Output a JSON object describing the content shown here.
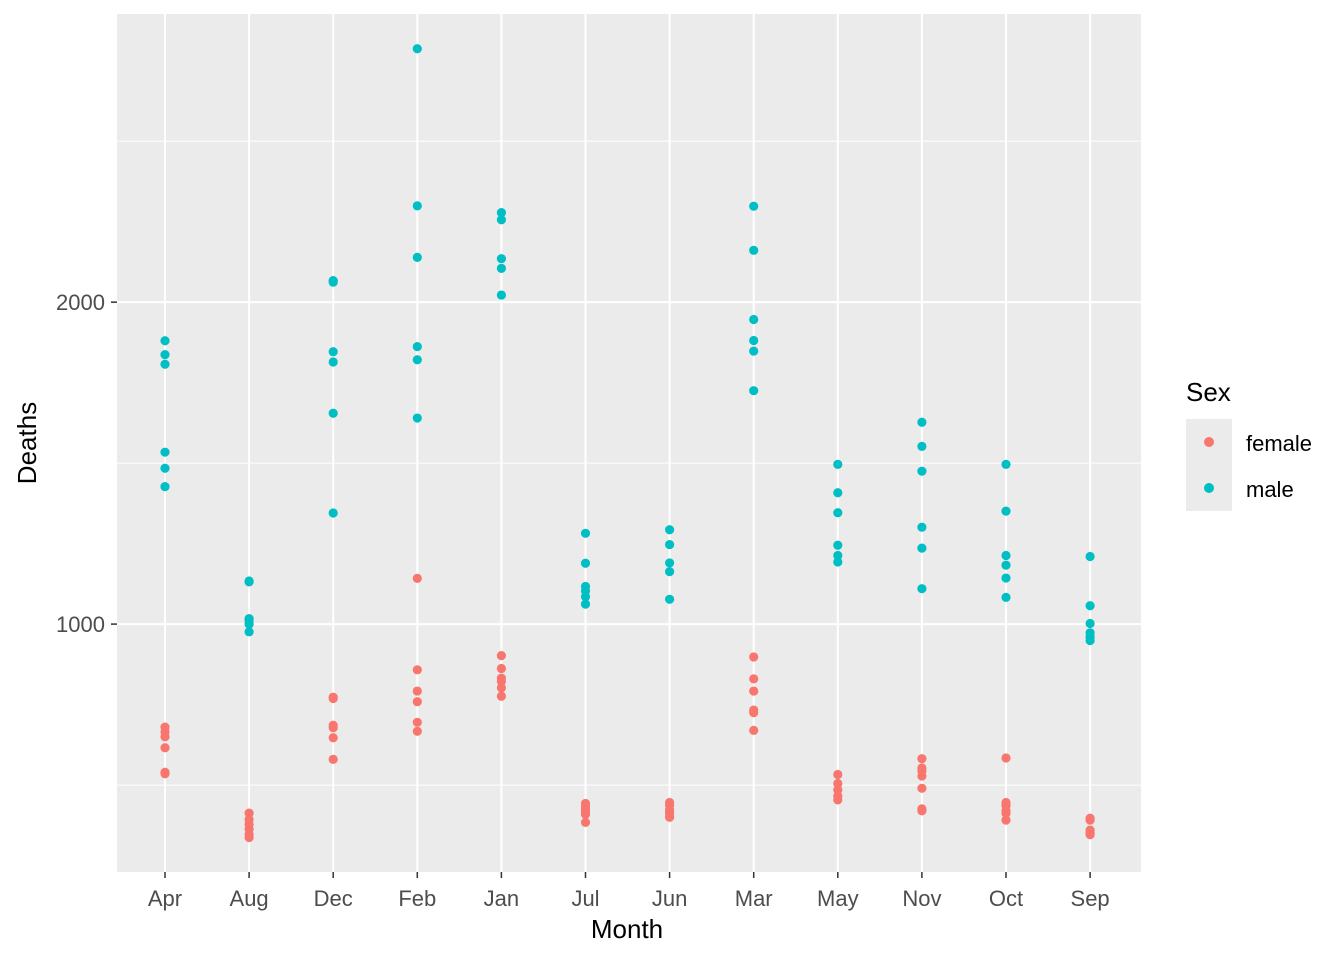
{
  "chart_data": {
    "type": "scatter",
    "xlabel": "Month",
    "ylabel": "Deaths",
    "categories": [
      "Apr",
      "Aug",
      "Dec",
      "Feb",
      "Jan",
      "Jul",
      "Jun",
      "Mar",
      "May",
      "Nov",
      "Oct",
      "Sep"
    ],
    "y_ticks": [
      1000,
      2000
    ],
    "ylim": [
      230,
      2895
    ],
    "grid": true,
    "legend": {
      "title": "Sex",
      "placement": "right"
    },
    "series": [
      {
        "name": "female",
        "color": "#F8766D",
        "points": [
          [
            "Apr",
            680
          ],
          [
            "Apr",
            665
          ],
          [
            "Apr",
            650
          ],
          [
            "Apr",
            616
          ],
          [
            "Apr",
            540
          ],
          [
            "Apr",
            535
          ],
          [
            "Aug",
            413
          ],
          [
            "Aug",
            393
          ],
          [
            "Aug",
            378
          ],
          [
            "Aug",
            363
          ],
          [
            "Aug",
            347
          ],
          [
            "Aug",
            337
          ],
          [
            "Dec",
            773
          ],
          [
            "Dec",
            769
          ],
          [
            "Dec",
            686
          ],
          [
            "Dec",
            678
          ],
          [
            "Dec",
            647
          ],
          [
            "Dec",
            580
          ],
          [
            "Feb",
            1142
          ],
          [
            "Feb",
            858
          ],
          [
            "Feb",
            792
          ],
          [
            "Feb",
            759
          ],
          [
            "Feb",
            695
          ],
          [
            "Feb",
            667
          ],
          [
            "Jan",
            902
          ],
          [
            "Jan",
            862
          ],
          [
            "Jan",
            832
          ],
          [
            "Jan",
            822
          ],
          [
            "Jan",
            802
          ],
          [
            "Jan",
            776
          ],
          [
            "Jul",
            443
          ],
          [
            "Jul",
            433
          ],
          [
            "Jul",
            424
          ],
          [
            "Jul",
            416
          ],
          [
            "Jul",
            409
          ],
          [
            "Jul",
            384
          ],
          [
            "Jun",
            446
          ],
          [
            "Jun",
            437
          ],
          [
            "Jun",
            424
          ],
          [
            "Jun",
            416
          ],
          [
            "Jun",
            410
          ],
          [
            "Jun",
            400
          ],
          [
            "Mar",
            898
          ],
          [
            "Mar",
            830
          ],
          [
            "Mar",
            792
          ],
          [
            "Mar",
            733
          ],
          [
            "Mar",
            725
          ],
          [
            "Mar",
            670
          ],
          [
            "May",
            533
          ],
          [
            "May",
            505
          ],
          [
            "May",
            485
          ],
          [
            "May",
            466
          ],
          [
            "May",
            454
          ],
          [
            "Nov",
            582
          ],
          [
            "Nov",
            553
          ],
          [
            "Nov",
            544
          ],
          [
            "Nov",
            528
          ],
          [
            "Nov",
            490
          ],
          [
            "Nov",
            426
          ],
          [
            "Nov",
            420
          ],
          [
            "Oct",
            584
          ],
          [
            "Oct",
            446
          ],
          [
            "Oct",
            436
          ],
          [
            "Oct",
            421
          ],
          [
            "Oct",
            412
          ],
          [
            "Oct",
            391
          ],
          [
            "Sep",
            397
          ],
          [
            "Sep",
            391
          ],
          [
            "Sep",
            360
          ],
          [
            "Sep",
            352
          ],
          [
            "Sep",
            346
          ]
        ]
      },
      {
        "name": "male",
        "color": "#00BFC4",
        "points": [
          [
            "Apr",
            1880
          ],
          [
            "Apr",
            1837
          ],
          [
            "Apr",
            1807
          ],
          [
            "Apr",
            1534
          ],
          [
            "Apr",
            1484
          ],
          [
            "Apr",
            1427
          ],
          [
            "Aug",
            1134
          ],
          [
            "Aug",
            1131
          ],
          [
            "Aug",
            1017
          ],
          [
            "Aug",
            1011
          ],
          [
            "Aug",
            1000
          ],
          [
            "Aug",
            976
          ],
          [
            "Dec",
            2067
          ],
          [
            "Dec",
            2062
          ],
          [
            "Dec",
            1846
          ],
          [
            "Dec",
            1814
          ],
          [
            "Dec",
            1655
          ],
          [
            "Dec",
            1345
          ],
          [
            "Feb",
            2787
          ],
          [
            "Feb",
            2299
          ],
          [
            "Feb",
            2139
          ],
          [
            "Feb",
            1862
          ],
          [
            "Feb",
            1821
          ],
          [
            "Feb",
            1640
          ],
          [
            "Jan",
            2278
          ],
          [
            "Jan",
            2256
          ],
          [
            "Jan",
            2135
          ],
          [
            "Jan",
            2105
          ],
          [
            "Jan",
            2022
          ],
          [
            "Jul",
            1282
          ],
          [
            "Jul",
            1189
          ],
          [
            "Jul",
            1117
          ],
          [
            "Jul",
            1103
          ],
          [
            "Jul",
            1085
          ],
          [
            "Jul",
            1062
          ],
          [
            "Jun",
            1293
          ],
          [
            "Jun",
            1247
          ],
          [
            "Jun",
            1190
          ],
          [
            "Jun",
            1163
          ],
          [
            "Jun",
            1077
          ],
          [
            "Mar",
            2298
          ],
          [
            "Mar",
            2161
          ],
          [
            "Mar",
            1946
          ],
          [
            "Mar",
            1881
          ],
          [
            "Mar",
            1848
          ],
          [
            "Mar",
            1725
          ],
          [
            "May",
            1496
          ],
          [
            "May",
            1408
          ],
          [
            "May",
            1346
          ],
          [
            "May",
            1245
          ],
          [
            "May",
            1213
          ],
          [
            "May",
            1193
          ],
          [
            "Nov",
            1627
          ],
          [
            "Nov",
            1552
          ],
          [
            "Nov",
            1475
          ],
          [
            "Nov",
            1301
          ],
          [
            "Nov",
            1236
          ],
          [
            "Nov",
            1110
          ],
          [
            "Oct",
            1496
          ],
          [
            "Oct",
            1351
          ],
          [
            "Oct",
            1213
          ],
          [
            "Oct",
            1183
          ],
          [
            "Oct",
            1143
          ],
          [
            "Oct",
            1083
          ],
          [
            "Sep",
            1210
          ],
          [
            "Sep",
            1057
          ],
          [
            "Sep",
            1002
          ],
          [
            "Sep",
            973
          ],
          [
            "Sep",
            960
          ],
          [
            "Sep",
            949
          ]
        ]
      }
    ]
  }
}
